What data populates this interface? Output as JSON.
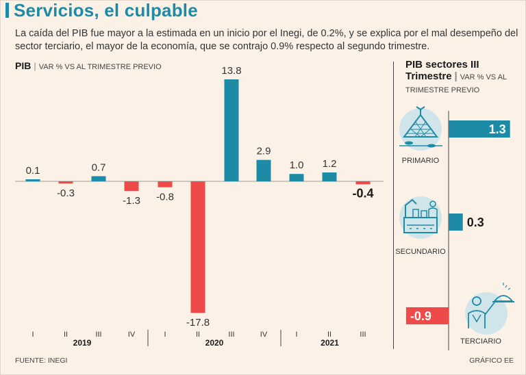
{
  "header": {
    "title": "Servicios, el culpable",
    "subtitle": "La caída del PIB fue mayor a la estimada en un inicio por el Inegi, de 0.2%, y se explica por el mal desempeño del sector terciario, el mayor de la economía, que se contrajo 0.9% respecto al segundo trimestre."
  },
  "main_chart": {
    "label": "PIB",
    "unit": "VAR % VS AL TRIMESTRE PREVIO"
  },
  "side_chart": {
    "label_line1": "PIB sectores III",
    "label_line2": "Trimestre",
    "unit": "VAR % VS AL TRIMESTRE PREVIO"
  },
  "chart_data": [
    {
      "type": "bar",
      "title": "PIB",
      "ylabel": "VAR % VS AL TRIMESTRE PREVIO",
      "categories": [
        "I",
        "II",
        "III",
        "IV",
        "I",
        "II",
        "III",
        "IV",
        "I",
        "II",
        "III"
      ],
      "groups": [
        {
          "label": "2019",
          "count": 4
        },
        {
          "label": "2020",
          "count": 4
        },
        {
          "label": "2021",
          "count": 3
        }
      ],
      "values": [
        0.1,
        -0.3,
        0.7,
        -1.3,
        -0.8,
        -17.8,
        13.8,
        2.9,
        1.0,
        1.2,
        -0.4
      ],
      "value_labels": [
        "0.1",
        "-0.3",
        "0.7",
        "-1.3",
        "-0.8",
        "-17.8",
        "13.8",
        "2.9",
        "1.0",
        "1.2",
        "-0.4"
      ],
      "highlight_index": 10,
      "ylim": [
        -18,
        14
      ],
      "grid": false
    },
    {
      "type": "bar",
      "orientation": "horizontal",
      "title": "PIB sectores III Trimestre",
      "categories": [
        "PRIMARIO",
        "SECUNDARIO",
        "TERCIARIO"
      ],
      "icons": [
        "fishing-net-icon",
        "factory-icon",
        "waiter-service-icon"
      ],
      "values": [
        1.3,
        0.3,
        -0.9
      ],
      "value_labels": [
        "1.3",
        "0.3",
        "-0.9"
      ]
    }
  ],
  "colors": {
    "positive": "#1d8aa6",
    "negative": "#ef4a4a",
    "background": "#fbf1e6",
    "icon_circle": "#cfe5ea"
  },
  "footer": {
    "source": "FUENTE: INEGI",
    "credit": "GRÁFICO EE"
  }
}
